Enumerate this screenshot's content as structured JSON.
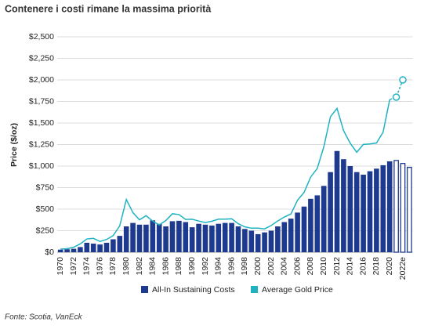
{
  "chart_data": {
    "type": "bar+line",
    "title": "Contenere i costi rimane la massima priorità",
    "ylabel": "Price ($/oz)",
    "source": "Fonte: Scotia, VanEck",
    "categories": [
      "1970",
      null,
      "1972",
      null,
      "1974",
      null,
      "1976",
      null,
      "1978",
      null,
      "1980",
      null,
      "1982",
      null,
      "1984",
      null,
      "1986",
      null,
      "1988",
      null,
      "1990",
      null,
      "1992",
      null,
      "1994",
      null,
      "1996",
      null,
      "1998",
      null,
      "2000",
      null,
      "2002",
      null,
      "2004",
      null,
      "2006",
      null,
      "2008",
      null,
      "2010",
      null,
      "2012",
      null,
      "2014",
      null,
      "2016",
      null,
      "2018",
      null,
      "2020",
      null,
      "2022e",
      null
    ],
    "series": [
      {
        "name": "All-In Sustaining Costs",
        "type": "bar",
        "color": "#1e3a8f",
        "values": [
          30,
          35,
          40,
          60,
          110,
          100,
          90,
          110,
          150,
          190,
          300,
          340,
          320,
          320,
          370,
          330,
          300,
          360,
          365,
          350,
          290,
          330,
          320,
          310,
          330,
          340,
          340,
          300,
          270,
          250,
          210,
          230,
          250,
          300,
          350,
          390,
          460,
          530,
          620,
          660,
          770,
          930,
          1175,
          1080,
          1000,
          930,
          900,
          940,
          970,
          1010,
          1055,
          1065,
          1030,
          985
        ]
      },
      {
        "name": "Average Gold Price",
        "type": "line",
        "color": "#1fb3c2",
        "values": [
          36,
          41,
          58,
          97,
          154,
          161,
          125,
          148,
          193,
          307,
          612,
          460,
          376,
          424,
          361,
          317,
          368,
          447,
          437,
          381,
          383,
          362,
          344,
          360,
          384,
          384,
          388,
          331,
          294,
          279,
          279,
          271,
          310,
          363,
          409,
          444,
          603,
          695,
          872,
          972,
          1225,
          1572,
          1669,
          1411,
          1266,
          1160,
          1251,
          1257,
          1268,
          1393,
          1770,
          1800,
          2000,
          null
        ]
      }
    ],
    "ylim": [
      0,
      2500
    ],
    "yticks": [
      {
        "value": 0,
        "label": "$0"
      },
      {
        "value": 250,
        "label": "$250"
      },
      {
        "value": 500,
        "label": "$500"
      },
      {
        "value": 750,
        "label": "$750"
      },
      {
        "value": 1000,
        "label": "$1,000"
      },
      {
        "value": 1250,
        "label": "$1,250"
      },
      {
        "value": 1500,
        "label": "$1,500"
      },
      {
        "value": 1750,
        "label": "$1,750"
      },
      {
        "value": 2000,
        "label": "$2,000"
      },
      {
        "value": 2250,
        "label": "$2,250"
      },
      {
        "value": 2500,
        "label": "$2,500"
      }
    ],
    "grid": true,
    "legend": "bottom"
  }
}
